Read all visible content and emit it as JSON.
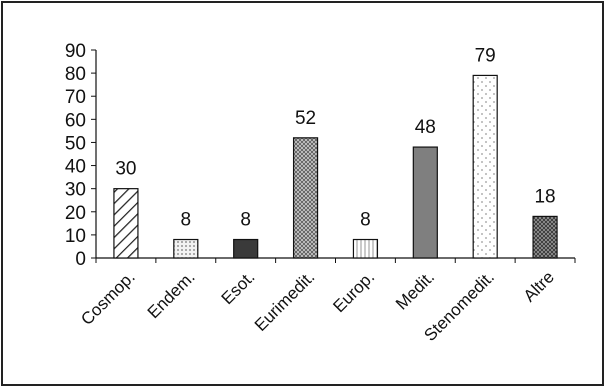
{
  "chart_data": {
    "type": "bar",
    "categories": [
      "Cosmop.",
      "Endem.",
      "Esot.",
      "Eurimedit.",
      "Europ.",
      "Medit.",
      "Stenomedit.",
      "Altre"
    ],
    "values": [
      30,
      8,
      8,
      52,
      8,
      48,
      79,
      18
    ],
    "data_labels": [
      "30",
      "8",
      "8",
      "52",
      "8",
      "48",
      "79",
      "18"
    ],
    "ylim": [
      0,
      90
    ],
    "yticks": [
      "0",
      "10",
      "20",
      "30",
      "40",
      "50",
      "60",
      "70",
      "80",
      "90"
    ],
    "title": "",
    "xlabel": "",
    "ylabel": "",
    "grid": false,
    "legend": "none",
    "bar_fills": [
      "diagonal-hatch",
      "light-dots",
      "dark-solid",
      "crosshatch",
      "vertical-lines",
      "gray-solid",
      "sparse-dots",
      "dense-crosshatch"
    ],
    "colors": {
      "axis": "#111111",
      "bar_edge": "#111111",
      "dark_fill": "#3a3a3a",
      "gray_fill": "#7f7f7f"
    }
  }
}
